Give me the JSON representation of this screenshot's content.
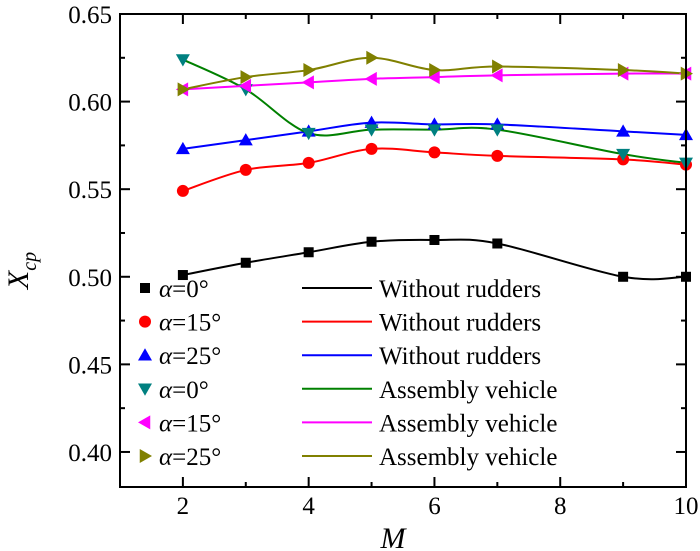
{
  "chart_data": {
    "type": "scatter",
    "xlabel": "M",
    "ylabel_base": "X",
    "ylabel_sub": "cp",
    "xlim": [
      1,
      10
    ],
    "ylim": [
      0.38,
      0.65
    ],
    "xticks": [
      2,
      4,
      6,
      8,
      10
    ],
    "yticks": [
      0.4,
      0.45,
      0.5,
      0.55,
      0.6,
      0.65
    ],
    "ytick_labels": [
      "0.40",
      "0.45",
      "0.50",
      "0.55",
      "0.60",
      "0.65"
    ],
    "xtick_labels": [
      "2",
      "4",
      "6",
      "8",
      "10"
    ],
    "legend_placement": "bottom-left",
    "grid": false,
    "x": [
      2,
      3,
      4,
      5,
      6,
      7,
      9,
      10
    ],
    "series": [
      {
        "angle_symbol": "α",
        "angle_value": "=0°",
        "line_name": "Without rudders",
        "marker": "square",
        "color": "#000000",
        "values": [
          0.501,
          0.508,
          0.514,
          0.52,
          0.521,
          0.519,
          0.5,
          0.5
        ]
      },
      {
        "angle_symbol": "α",
        "angle_value": "=15°",
        "line_name": "Without rudders",
        "marker": "circle",
        "color": "#ff0000",
        "values": [
          0.549,
          0.561,
          0.565,
          0.573,
          0.571,
          0.569,
          0.567,
          0.564
        ]
      },
      {
        "angle_symbol": "α",
        "angle_value": "=25°",
        "line_name": "Without rudders",
        "marker": "triangle-up",
        "color": "#0000ff",
        "values": [
          0.573,
          0.578,
          0.583,
          0.588,
          0.587,
          0.587,
          0.583,
          0.581
        ]
      },
      {
        "angle_symbol": "α",
        "angle_value": "=0°",
        "line_name": "Assembly vehicle",
        "marker": "triangle-down",
        "color": "#008080",
        "line_color": "#008000",
        "values": [
          0.624,
          0.607,
          0.582,
          0.584,
          0.584,
          0.584,
          0.57,
          0.565
        ]
      },
      {
        "angle_symbol": "α",
        "angle_value": "=15°",
        "line_name": "Assembly vehicle",
        "marker": "triangle-left",
        "color": "#ff00ff",
        "values": [
          0.607,
          0.609,
          0.611,
          0.613,
          0.614,
          0.615,
          0.616,
          0.616
        ]
      },
      {
        "angle_symbol": "α",
        "angle_value": "=25°",
        "line_name": "Assembly vehicle",
        "marker": "triangle-right",
        "color": "#808000",
        "values": [
          0.607,
          0.614,
          0.618,
          0.625,
          0.618,
          0.62,
          0.618,
          0.616
        ]
      }
    ]
  }
}
